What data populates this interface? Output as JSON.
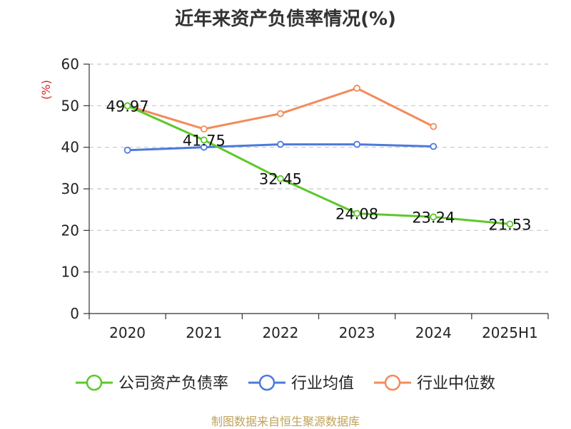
{
  "title": "近年来资产负债率情况(%)",
  "source": "制图数据来自恒生聚源数据库",
  "chart_data": {
    "type": "line",
    "title": "近年来资产负债率情况(%)",
    "ylabel": "(%)",
    "xlabel": "",
    "ylim": [
      0,
      60
    ],
    "yticks": [
      0,
      10,
      20,
      30,
      40,
      50,
      60
    ],
    "grid": true,
    "legend_position": "bottom",
    "categories": [
      "2020",
      "2021",
      "2022",
      "2023",
      "2024",
      "2025H1"
    ],
    "series": [
      {
        "name": "公司资产负债率",
        "color": "#5cc82a",
        "values": [
          49.97,
          41.75,
          32.45,
          24.08,
          23.24,
          21.53
        ],
        "data_labels": [
          "49.97",
          "41.75",
          "32.45",
          "24.08",
          "23.24",
          "21.53"
        ]
      },
      {
        "name": "行业均值",
        "color": "#4d79db",
        "values": [
          39.3,
          40.0,
          40.7,
          40.7,
          40.2,
          null
        ]
      },
      {
        "name": "行业中位数",
        "color": "#f28b5b",
        "values": [
          50.0,
          44.4,
          48.1,
          54.2,
          45.0,
          null
        ]
      }
    ]
  }
}
